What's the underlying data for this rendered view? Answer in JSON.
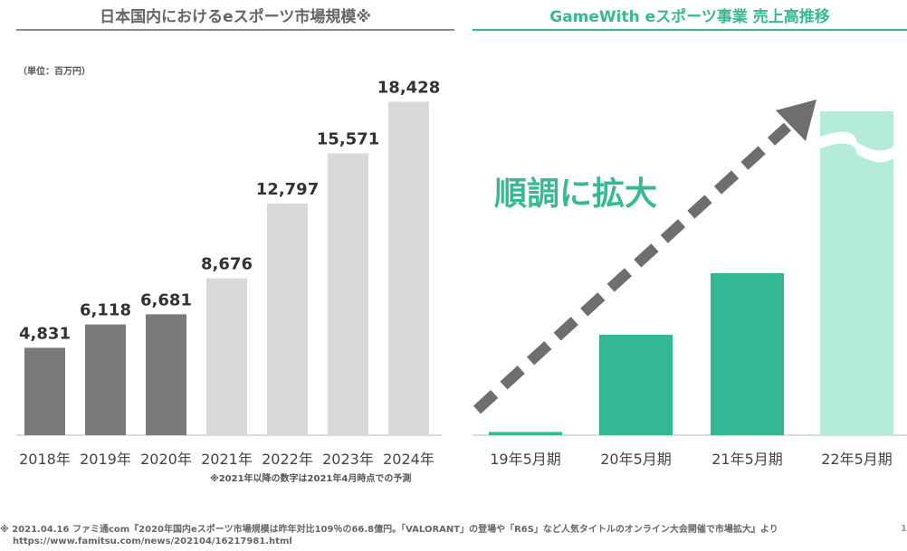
{
  "left_chart": {
    "title": "日本国内におけるeスポーツ市場規模※",
    "unit": "（単位：百万円）",
    "note": "※2021年以降の数字は2021年4月時点での予測",
    "colors": {
      "actual": "#7a7a7a",
      "forecast": "#d9d9d9"
    }
  },
  "right_chart": {
    "title": "GameWith eスポーツ事業 売上高推移",
    "annotation": "順調に拡大",
    "colors": {
      "bar": "#34b893",
      "projected": "#b5ebd9",
      "arrow": "#6e6e6e",
      "text": "#3ab894"
    }
  },
  "footer": {
    "source": "※ 2021.04.16 ファミ通com『2020年国内eスポーツ市場規模は昨年対比109％の66.8億円。「VALORANT」の登場や「R6S」など人気タイトルのオンライン大会開催で市場拡大』より",
    "url": "https://www.famitsu.com/news/202104/16217981.html",
    "page_number": "1"
  },
  "chart_data": [
    {
      "type": "bar",
      "title": "日本国内におけるeスポーツ市場規模※",
      "categories": [
        "2018年",
        "2019年",
        "2020年",
        "2021年",
        "2022年",
        "2023年",
        "2024年"
      ],
      "values": [
        4831,
        6118,
        6681,
        8676,
        12797,
        15571,
        18428
      ],
      "value_labels": [
        "4,831",
        "6,118",
        "6,681",
        "8,676",
        "12,797",
        "15,571",
        "18,428"
      ],
      "forecast": [
        false,
        false,
        false,
        true,
        true,
        true,
        true
      ],
      "ylim": [
        0,
        20000
      ],
      "grid": false
    },
    {
      "type": "bar",
      "title": "GameWith eスポーツ事業 売上高推移",
      "categories": [
        "19年5月期",
        "20年5月期",
        "21年5月期",
        "22年5月期"
      ],
      "values": [
        1,
        31,
        50,
        100
      ],
      "projected": [
        false,
        false,
        false,
        true
      ],
      "ylim": [
        0,
        100
      ],
      "grid": false
    }
  ]
}
